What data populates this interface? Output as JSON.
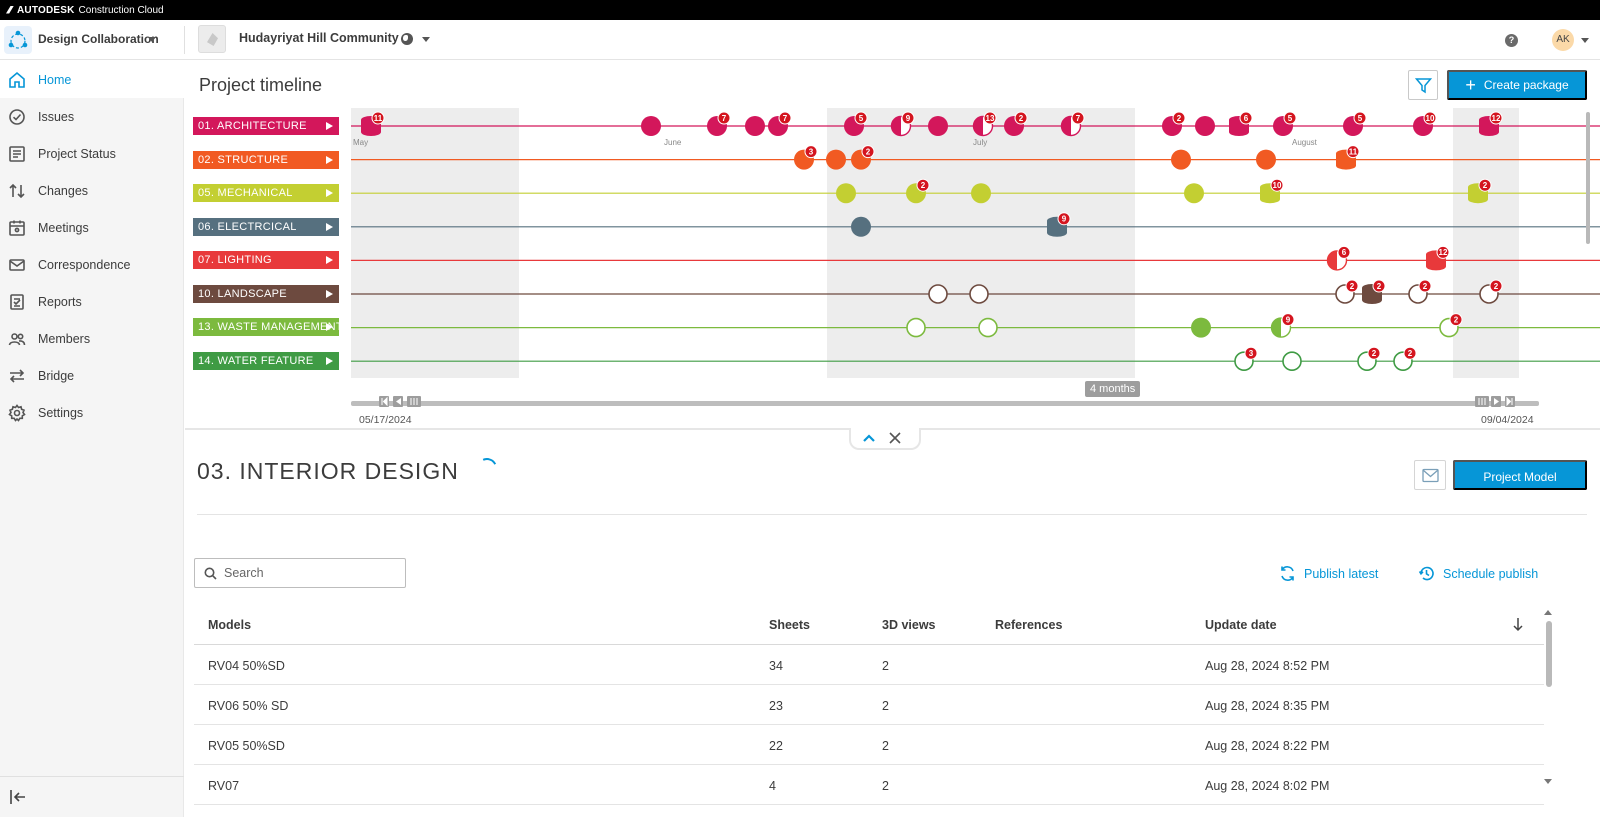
{
  "brand": {
    "logo": "AUTODESK",
    "product": "Construction Cloud"
  },
  "header": {
    "module": "Design Collaboration",
    "project": "Hudayriyat Hill Community",
    "avatar": "AK",
    "help": "?"
  },
  "sidebar": {
    "items": [
      {
        "label": "Home",
        "icon": "home-icon",
        "active": true
      },
      {
        "label": "Issues",
        "icon": "check-circle-icon"
      },
      {
        "label": "Project Status",
        "icon": "list-icon"
      },
      {
        "label": "Changes",
        "icon": "swap-vertical-icon"
      },
      {
        "label": "Meetings",
        "icon": "calendar-people-icon"
      },
      {
        "label": "Correspondence",
        "icon": "mail-icon"
      },
      {
        "label": "Reports",
        "icon": "report-icon"
      },
      {
        "label": "Members",
        "icon": "people-icon"
      },
      {
        "label": "Bridge",
        "icon": "bridge-arrows-icon"
      },
      {
        "label": "Settings",
        "icon": "gear-icon"
      }
    ]
  },
  "timeline": {
    "title": "Project timeline",
    "create_label": "Create package",
    "range_label": "4 months",
    "start_date": "05/17/2024",
    "end_date": "09/04/2024",
    "months": [
      "May",
      "June",
      "July",
      "August"
    ],
    "disciplines": [
      {
        "label": "01. ARCHITECTURE",
        "color": "#d3175b"
      },
      {
        "label": "02. STRUCTURE",
        "color": "#f15a22"
      },
      {
        "label": "05. MECHANICAL",
        "color": "#c3cf32"
      },
      {
        "label": "06. ELECTRCICAL",
        "color": "#56707f"
      },
      {
        "label": "07. LIGHTING",
        "color": "#e8393b"
      },
      {
        "label": "10. LANDSCAPE",
        "color": "#6d4a3f"
      },
      {
        "label": "13. WASTE MANAGEMENT",
        "color": "#7cba3e"
      },
      {
        "label": "14. WATER FEATURE",
        "color": "#3f9b44"
      }
    ]
  },
  "package": {
    "title": "03. INTERIOR DESIGN",
    "project_model_label": "Project Model",
    "search_placeholder": "Search",
    "publish_latest": "Publish latest",
    "schedule_publish": "Schedule publish",
    "columns": {
      "models": "Models",
      "sheets": "Sheets",
      "views": "3D views",
      "references": "References",
      "update": "Update date"
    },
    "rows": [
      {
        "model": "RV04 50%SD",
        "sheets": "34",
        "views": "2",
        "references": "",
        "date": "Aug 28, 2024 8:52 PM"
      },
      {
        "model": "RV06 50% SD",
        "sheets": "23",
        "views": "2",
        "references": "",
        "date": "Aug 28, 2024 8:35 PM"
      },
      {
        "model": "RV05 50%SD",
        "sheets": "22",
        "views": "2",
        "references": "",
        "date": "Aug 28, 2024 8:22 PM"
      },
      {
        "model": "RV07",
        "sheets": "4",
        "views": "2",
        "references": "",
        "date": "Aug 28, 2024 8:02 PM"
      }
    ]
  }
}
